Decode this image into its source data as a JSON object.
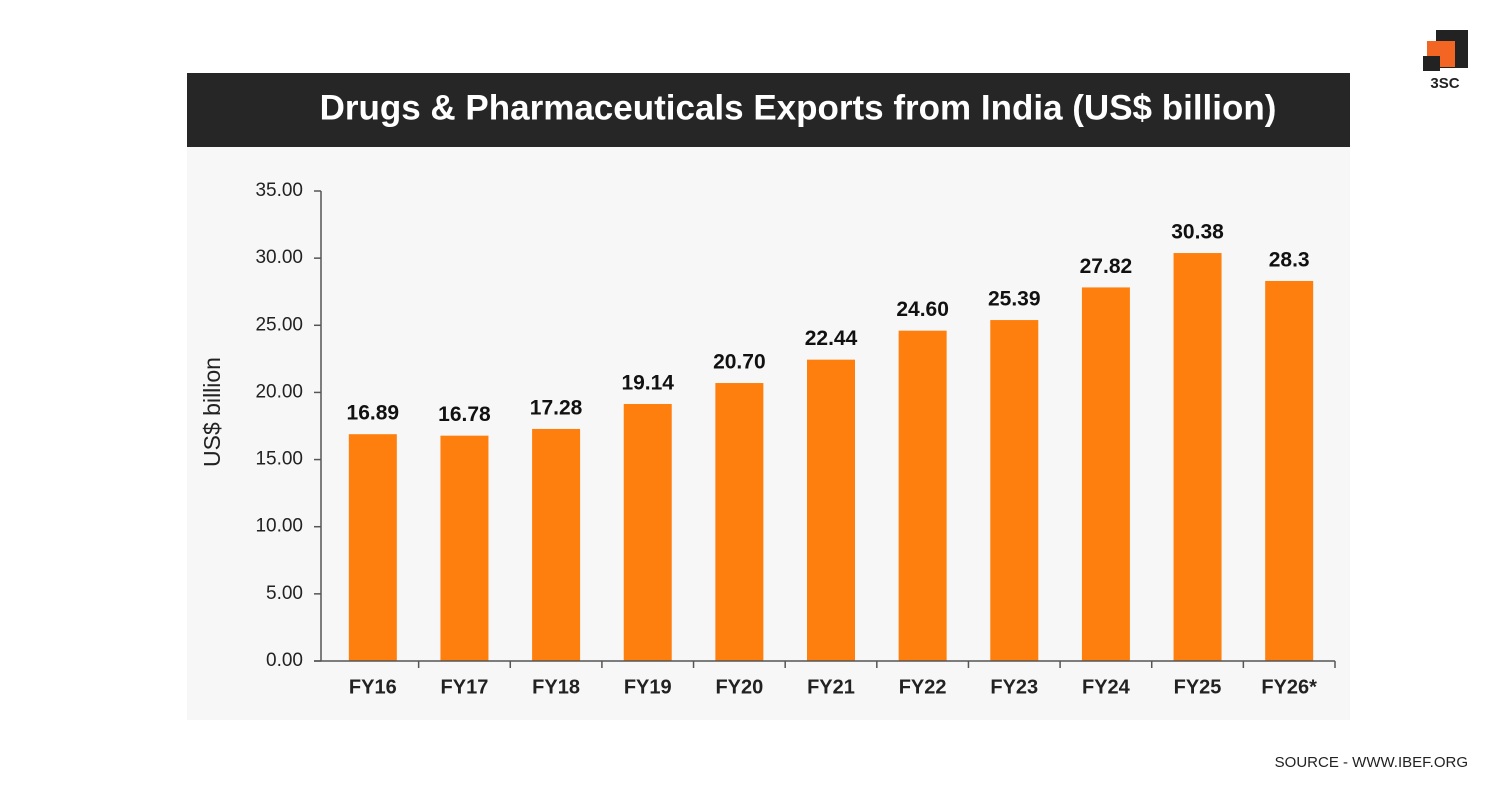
{
  "logo": "3SC",
  "source": "SOURCE - WWW.IBEF.ORG",
  "chart_data": {
    "type": "bar",
    "title": "Drugs & Pharmaceuticals Exports from India (US$ billion)",
    "y_label": "US$ billion",
    "categories": [
      "FY16",
      "FY17",
      "FY18",
      "FY19",
      "FY20",
      "FY21",
      "FY22",
      "FY23",
      "FY24",
      "FY25",
      "FY26*"
    ],
    "values": [
      16.89,
      16.78,
      17.28,
      19.14,
      20.7,
      22.44,
      24.6,
      25.39,
      27.82,
      30.38,
      28.3
    ],
    "value_labels": [
      "16.89",
      "16.78",
      "17.28",
      "19.14",
      "20.70",
      "22.44",
      "24.60",
      "25.39",
      "27.82",
      "30.38",
      "28.3"
    ],
    "color": "#ff7f0e",
    "ylim": [
      0,
      35
    ],
    "yticks": [
      {
        "value": 0,
        "label": "0.00"
      },
      {
        "value": 5,
        "label": "5.00"
      },
      {
        "value": 10,
        "label": "10.00"
      },
      {
        "value": 15,
        "label": "15.00"
      },
      {
        "value": 20,
        "label": "20.00"
      },
      {
        "value": 25,
        "label": "25.00"
      },
      {
        "value": 30,
        "label": "30.00"
      },
      {
        "value": 35,
        "label": "35.00"
      }
    ],
    "grid": false
  }
}
